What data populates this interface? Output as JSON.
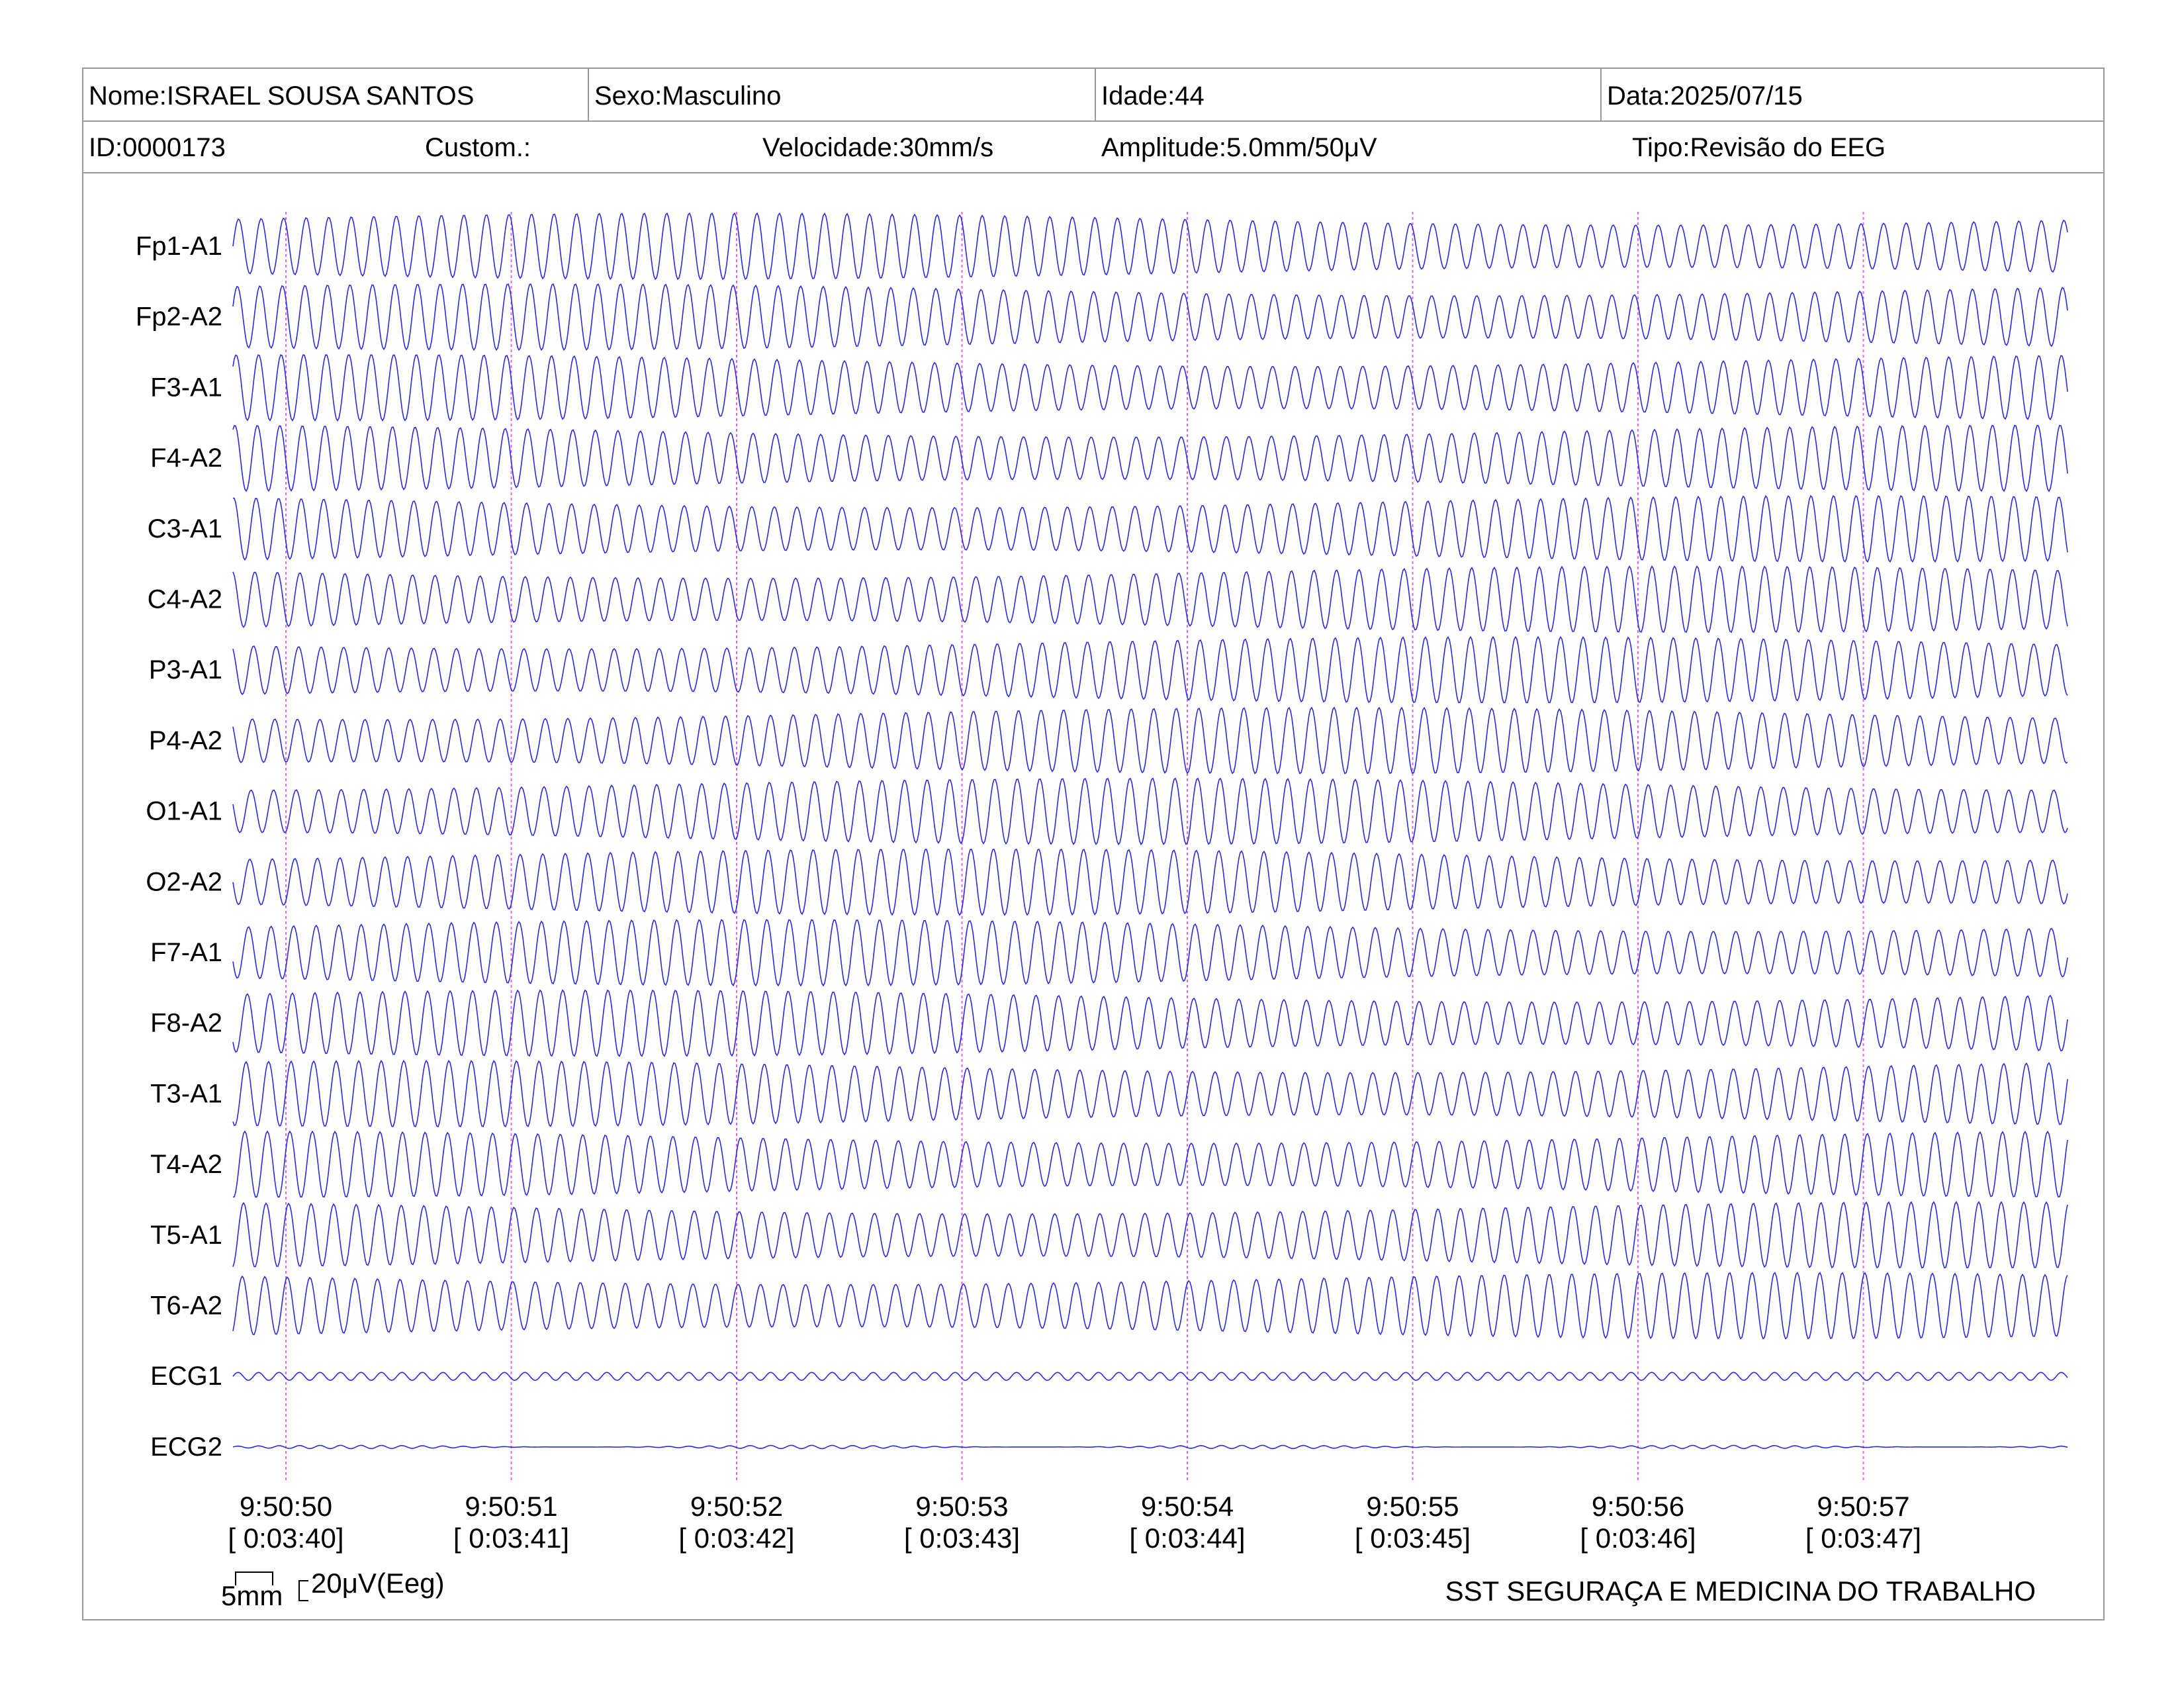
{
  "header": {
    "name": "Nome:ISRAEL SOUSA SANTOS",
    "sex": "Sexo:Masculino",
    "age": "Idade:44",
    "date": "Data:2025/07/15",
    "id": "ID:0000173",
    "custom": "Custom.:",
    "speed": "Velocidade:30mm/s",
    "amplitude": "Amplitude:5.0mm/50μV",
    "type": "Tipo:Revisão do EEG"
  },
  "chart_data": {
    "type": "line",
    "channels": [
      "Fp1-A1",
      "Fp2-A2",
      "F3-A1",
      "F4-A2",
      "C3-A1",
      "C4-A2",
      "P3-A1",
      "P4-A2",
      "O1-A1",
      "O2-A2",
      "F7-A1",
      "F8-A2",
      "T3-A1",
      "T4-A2",
      "T5-A1",
      "T6-A2",
      "ECG1",
      "ECG2"
    ],
    "time_labels": [
      "9:50:50",
      "9:50:51",
      "9:50:52",
      "9:50:53",
      "9:50:54",
      "9:50:55",
      "9:50:56",
      "9:50:57"
    ],
    "elapsed_labels": [
      "[ 0:03:40]",
      "[ 0:03:41]",
      "[ 0:03:42]",
      "[ 0:03:43]",
      "[ 0:03:44]",
      "[ 0:03:45]",
      "[ 0:03:46]",
      "[ 0:03:47]"
    ],
    "eeg_frequency_hz": 10,
    "ecg_frequency_hz": 11,
    "trace_color": "#2a2ae6",
    "time_marker_color": "#e066e0",
    "scale_bar_time": "5mm",
    "scale_bar_amplitude": "20μV(Eeg)"
  },
  "footer": {
    "company": "SST SEGURAÇA E MEDICINA DO TRABALHO"
  }
}
